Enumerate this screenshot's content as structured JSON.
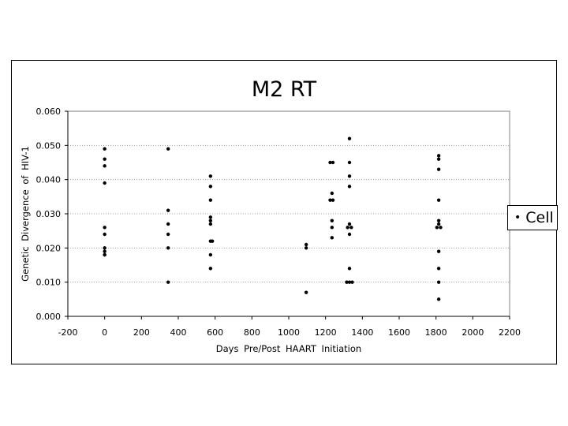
{
  "chart_data": {
    "type": "scatter",
    "title": "M2 RT",
    "xlabel": "Days  Pre/Post  HAART  Initiation",
    "ylabel": "Genetic  Divergence  of  HIV-1",
    "xlim": [
      -200,
      2200
    ],
    "ylim": [
      0,
      0.06
    ],
    "x_ticks": [
      "-200",
      "0",
      "200",
      "400",
      "600",
      "800",
      "1000",
      "1200",
      "1400",
      "1600",
      "1800",
      "2000",
      "2200"
    ],
    "y_ticks": [
      "0.000",
      "0.010",
      "0.020",
      "0.030",
      "0.040",
      "0.050",
      "0.060"
    ],
    "grid": "horizontal dotted",
    "legend_position": "right",
    "series": [
      {
        "name": "Cell",
        "color": "#000000",
        "points": [
          [
            0,
            0.049
          ],
          [
            0,
            0.046
          ],
          [
            0,
            0.044
          ],
          [
            0,
            0.039
          ],
          [
            0,
            0.026
          ],
          [
            0,
            0.024
          ],
          [
            0,
            0.02
          ],
          [
            0,
            0.019
          ],
          [
            0,
            0.018
          ],
          [
            0,
            0.018
          ],
          [
            345,
            0.049
          ],
          [
            345,
            0.031
          ],
          [
            345,
            0.027
          ],
          [
            345,
            0.024
          ],
          [
            345,
            0.02
          ],
          [
            345,
            0.01
          ],
          [
            575,
            0.041
          ],
          [
            575,
            0.038
          ],
          [
            575,
            0.034
          ],
          [
            575,
            0.029
          ],
          [
            575,
            0.028
          ],
          [
            575,
            0.027
          ],
          [
            575,
            0.022
          ],
          [
            585,
            0.022
          ],
          [
            575,
            0.018
          ],
          [
            575,
            0.014
          ],
          [
            1095,
            0.021
          ],
          [
            1095,
            0.02
          ],
          [
            1095,
            0.007
          ],
          [
            1225,
            0.045
          ],
          [
            1240,
            0.045
          ],
          [
            1235,
            0.036
          ],
          [
            1225,
            0.034
          ],
          [
            1240,
            0.034
          ],
          [
            1235,
            0.028
          ],
          [
            1235,
            0.026
          ],
          [
            1235,
            0.023
          ],
          [
            1330,
            0.052
          ],
          [
            1330,
            0.045
          ],
          [
            1330,
            0.041
          ],
          [
            1330,
            0.038
          ],
          [
            1330,
            0.027
          ],
          [
            1320,
            0.026
          ],
          [
            1340,
            0.026
          ],
          [
            1330,
            0.024
          ],
          [
            1330,
            0.014
          ],
          [
            1315,
            0.01
          ],
          [
            1330,
            0.01
          ],
          [
            1345,
            0.01
          ],
          [
            1815,
            0.047
          ],
          [
            1815,
            0.046
          ],
          [
            1815,
            0.043
          ],
          [
            1815,
            0.034
          ],
          [
            1815,
            0.028
          ],
          [
            1815,
            0.027
          ],
          [
            1805,
            0.026
          ],
          [
            1825,
            0.026
          ],
          [
            1815,
            0.019
          ],
          [
            1815,
            0.014
          ],
          [
            1815,
            0.01
          ],
          [
            1815,
            0.005
          ]
        ]
      }
    ]
  },
  "legend": {
    "marker": "•",
    "label": "Cell"
  }
}
